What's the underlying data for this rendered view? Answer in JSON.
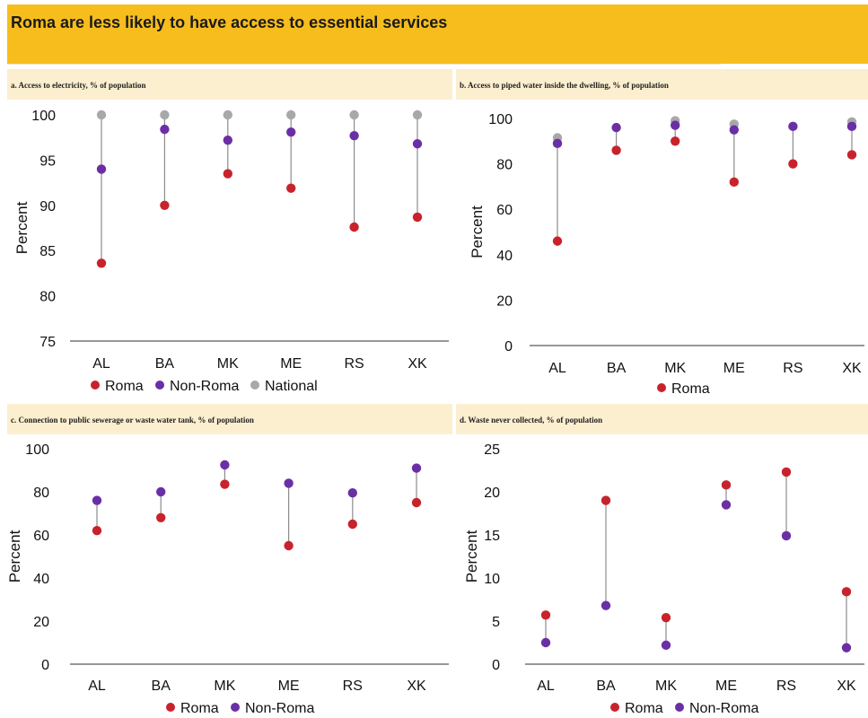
{
  "header": {
    "title": "Roma are less likely to have access to essential services"
  },
  "colors": {
    "roma": "#c8232c",
    "non_roma": "#6b2fa5",
    "national": "#a8a8a8",
    "banner": "#f7bd1d",
    "panel_head": "#fcefcf"
  },
  "chart_data": [
    {
      "id": "a",
      "type": "scatter",
      "title": "a. Access to electricity, % of population",
      "ylabel": "Percent",
      "ylim": [
        75,
        100
      ],
      "yticks": [
        75,
        80,
        85,
        90,
        95,
        100
      ],
      "categories": [
        "AL",
        "BA",
        "MK",
        "ME",
        "RS",
        "XK"
      ],
      "legend": "bottom",
      "series": [
        {
          "name": "Roma",
          "key": "roma",
          "values": [
            83.6,
            90.0,
            93.5,
            91.9,
            87.6,
            88.7
          ]
        },
        {
          "name": "Non-Roma",
          "key": "non_roma",
          "values": [
            94.0,
            98.4,
            97.2,
            98.1,
            97.7,
            96.8
          ]
        },
        {
          "name": "National",
          "key": "national",
          "values": [
            100,
            100,
            100,
            100,
            100,
            100
          ]
        }
      ]
    },
    {
      "id": "b",
      "type": "scatter",
      "title": "b. Access to piped water inside the dwelling, % of population",
      "ylabel": "Percent",
      "ylim": [
        0,
        100
      ],
      "yticks": [
        0,
        20,
        40,
        60,
        80,
        100
      ],
      "categories": [
        "AL",
        "BA",
        "MK",
        "ME",
        "RS",
        "XK"
      ],
      "legend": "bottom",
      "series": [
        {
          "name": "Roma",
          "key": "roma",
          "values": [
            46,
            86,
            90,
            72,
            80,
            84
          ]
        },
        {
          "name": "",
          "key": "non_roma",
          "values": [
            89,
            96,
            97,
            95,
            96.5,
            96.5
          ]
        },
        {
          "name": "",
          "key": "national",
          "values": [
            91.5,
            null,
            99,
            97.5,
            null,
            98.5
          ]
        }
      ]
    },
    {
      "id": "c",
      "type": "scatter",
      "title": "c. Connection to public sewerage or waste water tank, % of population",
      "ylabel": "Percent",
      "ylim": [
        0,
        100
      ],
      "yticks": [
        0,
        20,
        40,
        60,
        80,
        100
      ],
      "categories": [
        "AL",
        "BA",
        "MK",
        "ME",
        "RS",
        "XK"
      ],
      "legend": "bottom",
      "series": [
        {
          "name": "Roma",
          "key": "roma",
          "values": [
            62,
            68,
            83.5,
            55,
            65,
            75
          ]
        },
        {
          "name": "Non-Roma",
          "key": "non_roma",
          "values": [
            76,
            80,
            92.5,
            84,
            79.5,
            91
          ]
        }
      ]
    },
    {
      "id": "d",
      "type": "scatter",
      "title": "d. Waste never collected, % of population",
      "ylabel": "Percent",
      "ylim": [
        0,
        25
      ],
      "yticks": [
        0,
        5,
        10,
        15,
        20,
        25
      ],
      "categories": [
        "AL",
        "BA",
        "MK",
        "ME",
        "RS",
        "XK"
      ],
      "legend": "bottom",
      "series": [
        {
          "name": "Roma",
          "key": "roma",
          "values": [
            5.7,
            19.0,
            5.4,
            20.8,
            22.3,
            8.4
          ]
        },
        {
          "name": "Non-Roma",
          "key": "non_roma",
          "values": [
            2.5,
            6.8,
            2.2,
            18.5,
            14.9,
            1.9
          ]
        }
      ]
    }
  ]
}
